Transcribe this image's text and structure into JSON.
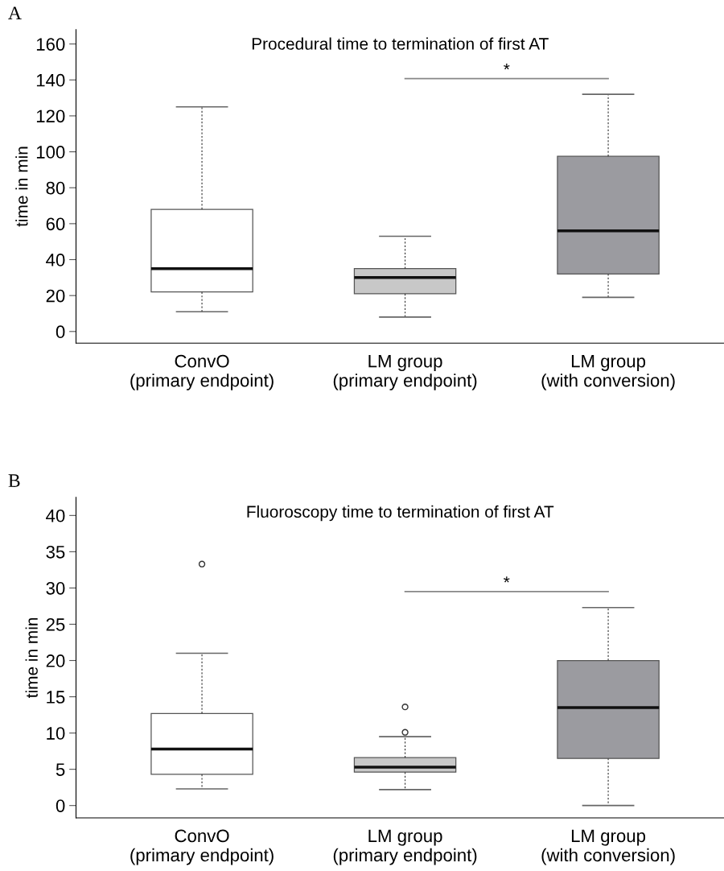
{
  "chart_data": [
    {
      "type": "box",
      "title": "Procedural time to termination of first AT",
      "ylabel": "time in min",
      "categories": [
        "ConvO\n(primary endpoint)",
        "LM group\n(primary endpoint)",
        "LM group\n(with conversion)"
      ],
      "colors": [
        "#ffffff",
        "#c8c8c8",
        "#9b9ba0"
      ],
      "boxes": [
        {
          "low": 11,
          "q1": 22,
          "median": 35,
          "q3": 68,
          "high": 125
        },
        {
          "low": 8,
          "q1": 21,
          "median": 30,
          "q3": 35,
          "high": 53
        },
        {
          "low": 19,
          "q1": 32,
          "median": 56,
          "q3": 97.5,
          "high": 132
        }
      ],
      "ylim": [
        -6.5,
        168
      ],
      "yticks": [
        0,
        20,
        40,
        60,
        80,
        100,
        120,
        140,
        160
      ],
      "grid": false,
      "annotations": [
        "A",
        "*"
      ]
    },
    {
      "type": "box",
      "title": "Fluoroscopy time to termination of first AT",
      "ylabel": "time in min",
      "categories": [
        "ConvO\n(primary endpoint)",
        "LM group\n(primary endpoint)",
        "LM group\n(with conversion)"
      ],
      "colors": [
        "#ffffff",
        "#c8c8c8",
        "#9b9ba0"
      ],
      "boxes": [
        {
          "low": 2.3,
          "q1": 4.3,
          "median": 7.8,
          "q3": 12.7,
          "high": 21,
          "outliers": [
            33.3
          ]
        },
        {
          "low": 2.2,
          "q1": 4.6,
          "median": 5.3,
          "q3": 6.6,
          "high": 9.5,
          "outliers": [
            13.6,
            10.1
          ]
        },
        {
          "low": 0,
          "q1": 6.5,
          "median": 13.5,
          "q3": 20,
          "high": 27.3
        }
      ],
      "ylim": [
        -1.7,
        42.5
      ],
      "yticks": [
        0,
        5,
        10,
        15,
        20,
        25,
        30,
        35,
        40
      ],
      "grid": false,
      "annotations": [
        "B",
        "*"
      ]
    }
  ]
}
